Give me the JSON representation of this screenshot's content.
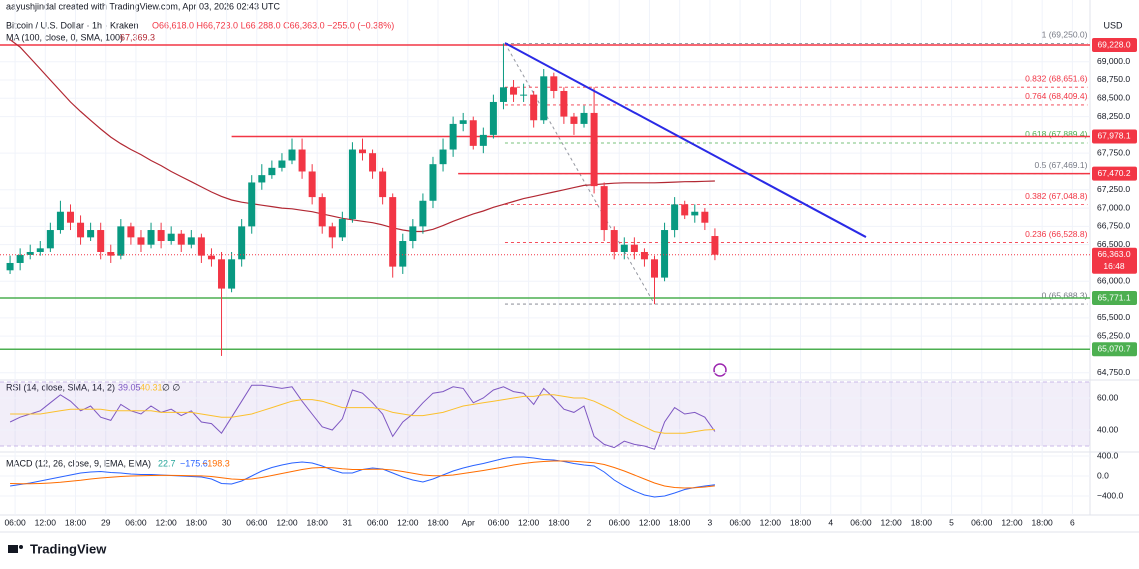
{
  "header": {
    "author": "aayushjindal created with TradingView.com, Apr 03, 2026 02:43 UTC",
    "symbol": "Bitcoin / U.S. Dollar · 1h · Kraken",
    "ohlc": "O66,618.0 H66,723.0 L66,288.0 C66,363.0 −255.0 (−0.38%)",
    "ma_label": "MA (100, close, 0, SMA, 100)",
    "ma_value": "67,369.3",
    "currency": "USD"
  },
  "footer": {
    "brand": "TradingView"
  },
  "chart_data": [
    {
      "type": "candlestick",
      "xlim": [
        -3,
        213.5
      ],
      "ylim": [
        64651,
        69843
      ],
      "grid": true,
      "xticks": [
        {
          "value": 0,
          "label": "06:00"
        },
        {
          "value": 6,
          "label": "12:00"
        },
        {
          "value": 12,
          "label": "18:00"
        },
        {
          "value": 18,
          "label": "29"
        },
        {
          "value": 24,
          "label": "06:00"
        },
        {
          "value": 30,
          "label": "12:00"
        },
        {
          "value": 36,
          "label": "18:00"
        },
        {
          "value": 42,
          "label": "30"
        },
        {
          "value": 48,
          "label": "06:00"
        },
        {
          "value": 54,
          "label": "12:00"
        },
        {
          "value": 60,
          "label": "18:00"
        },
        {
          "value": 66,
          "label": "31"
        },
        {
          "value": 72,
          "label": "06:00"
        },
        {
          "value": 78,
          "label": "12:00"
        },
        {
          "value": 84,
          "label": "18:00"
        },
        {
          "value": 90,
          "label": "Apr"
        },
        {
          "value": 96,
          "label": "06:00"
        },
        {
          "value": 102,
          "label": "12:00"
        },
        {
          "value": 108,
          "label": "18:00"
        },
        {
          "value": 114,
          "label": "2"
        },
        {
          "value": 120,
          "label": "06:00"
        },
        {
          "value": 126,
          "label": "12:00"
        },
        {
          "value": 132,
          "label": "18:00"
        },
        {
          "value": 138,
          "label": "3"
        },
        {
          "value": 144,
          "label": "06:00"
        },
        {
          "value": 150,
          "label": "12:00"
        },
        {
          "value": 156,
          "label": "18:00"
        },
        {
          "value": 162,
          "label": "4"
        },
        {
          "value": 168,
          "label": "06:00"
        },
        {
          "value": 174,
          "label": "12:00"
        },
        {
          "value": 180,
          "label": "18:00"
        },
        {
          "value": 186,
          "label": "5"
        },
        {
          "value": 192,
          "label": "06:00"
        },
        {
          "value": 198,
          "label": "12:00"
        },
        {
          "value": 204,
          "label": "18:00"
        },
        {
          "value": 210,
          "label": "6"
        }
      ],
      "yticks": [
        {
          "value": 69000,
          "label": "69,000.0"
        },
        {
          "value": 68750,
          "label": "68,750.0"
        },
        {
          "value": 68500,
          "label": "68,500.0"
        },
        {
          "value": 68250,
          "label": "68,250.0"
        },
        {
          "value": 67750,
          "label": "67,750.0"
        },
        {
          "value": 67250,
          "label": "67,250.0"
        },
        {
          "value": 67000,
          "label": "67,000.0"
        },
        {
          "value": 66750,
          "label": "66,750.0"
        },
        {
          "value": 66500,
          "label": "66,500.0"
        },
        {
          "value": 66000,
          "label": "66,000.0"
        },
        {
          "value": 65500,
          "label": "65,500.0"
        },
        {
          "value": 65250,
          "label": "65,250.0"
        },
        {
          "value": 64750,
          "label": "64,750.0"
        }
      ],
      "x": [
        -1,
        1,
        3,
        5,
        7,
        9,
        11,
        13,
        15,
        17,
        19,
        21,
        23,
        25,
        27,
        29,
        31,
        33,
        35,
        37,
        39,
        41,
        43,
        45,
        47,
        49,
        51,
        53,
        55,
        57,
        59,
        61,
        63,
        65,
        67,
        69,
        71,
        73,
        75,
        77,
        79,
        81,
        83,
        85,
        87,
        89,
        91,
        93,
        95,
        97,
        99,
        101,
        103,
        105,
        107,
        109,
        111,
        113,
        115,
        117,
        119,
        121,
        123,
        125,
        127,
        129,
        131,
        133,
        135,
        137,
        139
      ],
      "open": [
        66150,
        66250,
        66360,
        66400,
        66450,
        66700,
        66950,
        66800,
        66600,
        66700,
        66400,
        66350,
        66750,
        66600,
        66500,
        66700,
        66550,
        66650,
        66500,
        66600,
        66350,
        66300,
        65900,
        66300,
        66750,
        67350,
        67450,
        67550,
        67650,
        67800,
        67500,
        67150,
        66750,
        66600,
        66850,
        67800,
        67750,
        67500,
        67150,
        66200,
        66550,
        66750,
        67100,
        67600,
        67800,
        68150,
        68200,
        67850,
        68000,
        68450,
        68650,
        68550,
        68550,
        68200,
        68800,
        68600,
        68250,
        68150,
        68300,
        67300,
        66700,
        66400,
        66500,
        66400,
        66300,
        66050,
        66700,
        67050,
        66900,
        66950,
        66618
      ],
      "high": [
        66350,
        66450,
        66500,
        66550,
        66800,
        67100,
        67050,
        66900,
        66800,
        66800,
        66500,
        66850,
        66800,
        66700,
        66800,
        66800,
        66750,
        66700,
        66700,
        66650,
        66450,
        66400,
        66400,
        66850,
        67450,
        67600,
        67650,
        67750,
        67950,
        67950,
        67600,
        67200,
        66800,
        66950,
        67900,
        67950,
        67800,
        67550,
        67200,
        66650,
        66850,
        67200,
        67700,
        67950,
        68250,
        68300,
        68250,
        68100,
        68550,
        69250,
        68750,
        68700,
        68600,
        68900,
        68850,
        68650,
        68300,
        68400,
        68650,
        67350,
        66750,
        66600,
        66600,
        66450,
        66350,
        66800,
        67150,
        67100,
        67050,
        67000,
        66723
      ],
      "low": [
        66100,
        66150,
        66300,
        66350,
        66400,
        66650,
        66700,
        66500,
        66550,
        66300,
        66250,
        66300,
        66500,
        66400,
        66450,
        66450,
        66500,
        66400,
        66450,
        66250,
        66200,
        64980,
        65850,
        66200,
        66650,
        67250,
        67400,
        67500,
        67600,
        67400,
        67050,
        66650,
        66450,
        66550,
        66800,
        67650,
        67400,
        67050,
        66050,
        66100,
        66450,
        66650,
        67000,
        67500,
        67700,
        68050,
        67800,
        67750,
        67950,
        68350,
        68450,
        68450,
        68100,
        68150,
        68500,
        68150,
        68000,
        68100,
        67200,
        66550,
        66300,
        66300,
        66300,
        66200,
        65688,
        66000,
        66600,
        66850,
        66800,
        66700,
        66288
      ],
      "close": [
        66250,
        66360,
        66400,
        66450,
        66700,
        66950,
        66800,
        66600,
        66700,
        66400,
        66350,
        66750,
        66600,
        66500,
        66700,
        66550,
        66650,
        66500,
        66600,
        66350,
        66300,
        65900,
        66300,
        66750,
        67350,
        67450,
        67550,
        67650,
        67800,
        67500,
        67150,
        66750,
        66600,
        66850,
        67800,
        67750,
        67500,
        67150,
        66200,
        66550,
        66750,
        67100,
        67600,
        67800,
        68150,
        68200,
        67850,
        68000,
        68450,
        68650,
        68550,
        68550,
        68200,
        68800,
        68600,
        68250,
        68150,
        68300,
        67300,
        66700,
        66400,
        66500,
        66400,
        66300,
        66050,
        66700,
        67050,
        66900,
        66950,
        66800,
        66363
      ],
      "up_color": "#089981",
      "down_color": "#f23645",
      "ma": {
        "color": "#b22833",
        "values": [
          69300,
          69200,
          69050,
          68900,
          68750,
          68600,
          68450,
          68320,
          68200,
          68080,
          67970,
          67880,
          67800,
          67730,
          67650,
          67580,
          67500,
          67430,
          67360,
          67290,
          67220,
          67160,
          67110,
          67080,
          67060,
          67040,
          67020,
          67000,
          66990,
          66970,
          66950,
          66920,
          66890,
          66860,
          66840,
          66820,
          66800,
          66770,
          66730,
          66700,
          66680,
          66680,
          66710,
          66760,
          66820,
          66870,
          66920,
          66960,
          67010,
          67050,
          67090,
          67130,
          67160,
          67190,
          67220,
          67250,
          67280,
          67310,
          67320,
          67330,
          67340,
          67345,
          67345,
          67345,
          67345,
          67350,
          67355,
          67360,
          67362,
          67366,
          67369.3
        ]
      },
      "levels": [
        {
          "value": 69228.0,
          "label": "69,228.0",
          "color": "#f23645",
          "from": -3
        },
        {
          "value": 67978.1,
          "label": "67,978.1",
          "color": "#f23645",
          "from": 43
        },
        {
          "value": 67470.2,
          "label": "67,470.2",
          "color": "#f23645",
          "from": 88
        },
        {
          "value": 65771.1,
          "label": "65,771.1",
          "color": "#4caf50",
          "from": -3
        },
        {
          "value": 65070.7,
          "label": "65,070.7",
          "color": "#4caf50",
          "from": -3
        }
      ],
      "price_label": {
        "value": 66363.0,
        "label": "66,363.0",
        "countdown": "16:48",
        "color": "#f23645"
      },
      "fib": {
        "x": [
          97.3,
          127
        ],
        "to": 213,
        "levels": [
          {
            "value": 69250.0,
            "label": "1 (69,250.0)",
            "color": "#787b86"
          },
          {
            "value": 68651.6,
            "label": "0.832 (68,651.6)",
            "color": "#f23645"
          },
          {
            "value": 68409.4,
            "label": "0.764 (68,409.4)",
            "color": "#f23645"
          },
          {
            "value": 67889.4,
            "label": "0.618 (67,889.4)",
            "color": "#4caf50"
          },
          {
            "value": 67469.1,
            "label": "0.5 (67,469.1)",
            "color": "#787b86"
          },
          {
            "value": 67048.8,
            "label": "0.382 (67,048.8)",
            "color": "#f23645"
          },
          {
            "value": 66528.8,
            "label": "0.236 (66,528.8)",
            "color": "#f23645"
          },
          {
            "value": 65688.3,
            "label": "0 (65,688.3)",
            "color": "#787b86"
          }
        ]
      },
      "trendline": {
        "x": [
          97.3,
          169
        ],
        "y": [
          69255,
          66604
        ],
        "color": "#2a2ae6"
      }
    },
    {
      "type": "line",
      "title": "RSI (14, close, SMA, 14, 2)",
      "legend": [
        "39.05",
        "40.31",
        "∅ ∅"
      ],
      "ylim": [
        26.25,
        71.25
      ],
      "band": [
        30,
        70
      ],
      "yticks": [
        {
          "value": 60,
          "label": "60.00"
        },
        {
          "value": 40,
          "label": "40.00"
        }
      ],
      "series": [
        {
          "color": "#7e57c2",
          "values": [
            45,
            48,
            50,
            52,
            57,
            62,
            58,
            52,
            55,
            48,
            46,
            56,
            52,
            50,
            55,
            51,
            53,
            49,
            52,
            45,
            44,
            38,
            48,
            58,
            68,
            68,
            67,
            66,
            67,
            58,
            50,
            42,
            40,
            47,
            65,
            63,
            57,
            50,
            36,
            45,
            50,
            57,
            63,
            64,
            67,
            66,
            57,
            60,
            65,
            67,
            64,
            63,
            56,
            66,
            60,
            53,
            51,
            55,
            36,
            31,
            29,
            33,
            31,
            30,
            28,
            45,
            54,
            50,
            51,
            48,
            39.05
          ]
        },
        {
          "color": "#fbc02d",
          "values": [
            50,
            50,
            50,
            50,
            51,
            52,
            53,
            53,
            53,
            53,
            52,
            52,
            52,
            52,
            52,
            51,
            51,
            51,
            51,
            50,
            49,
            48,
            48,
            49,
            50,
            52,
            54,
            56,
            58,
            59,
            59,
            58,
            56,
            54,
            54,
            54,
            54,
            53,
            51,
            50,
            49,
            49,
            50,
            51,
            53,
            55,
            56,
            57,
            58,
            59,
            60,
            61,
            61,
            62,
            62,
            61,
            60,
            60,
            58,
            55,
            52,
            48,
            45,
            42,
            39,
            38,
            38,
            38,
            39,
            40,
            40.31
          ]
        }
      ]
    },
    {
      "type": "line",
      "title": "MACD (12, 26, close, 9, EMA, EMA)",
      "legend": [
        "22.7",
        "−175.6",
        "−198.3"
      ],
      "ylim": [
        -780,
        480
      ],
      "yticks": [
        {
          "value": 400,
          "label": "400.0"
        },
        {
          "value": 0,
          "label": "0.0"
        },
        {
          "value": -400,
          "label": "−400.0"
        }
      ],
      "series": [
        {
          "color": "#2962ff",
          "values": [
            -200,
            -170,
            -140,
            -100,
            -60,
            -20,
            20,
            60,
            80,
            90,
            70,
            60,
            40,
            30,
            30,
            20,
            10,
            0,
            -10,
            -20,
            -60,
            -150,
            -160,
            -100,
            0,
            100,
            170,
            220,
            260,
            280,
            260,
            200,
            120,
            60,
            60,
            130,
            160,
            140,
            60,
            -20,
            -80,
            -120,
            -60,
            20,
            100,
            160,
            210,
            250,
            300,
            350,
            380,
            380,
            360,
            330,
            320,
            290,
            250,
            220,
            200,
            80,
            -80,
            -200,
            -300,
            -380,
            -420,
            -400,
            -340,
            -270,
            -230,
            -200,
            -175.6
          ]
        },
        {
          "color": "#ff6d00",
          "values": [
            -150,
            -155,
            -155,
            -150,
            -140,
            -125,
            -105,
            -85,
            -60,
            -40,
            -25,
            -10,
            0,
            5,
            10,
            12,
            12,
            10,
            6,
            2,
            -10,
            -35,
            -60,
            -70,
            -60,
            -30,
            10,
            50,
            90,
            130,
            160,
            170,
            165,
            145,
            130,
            130,
            135,
            135,
            120,
            90,
            55,
            20,
            5,
            5,
            20,
            50,
            80,
            110,
            145,
            180,
            220,
            250,
            275,
            290,
            300,
            300,
            295,
            280,
            265,
            230,
            170,
            100,
            20,
            -60,
            -140,
            -200,
            -230,
            -240,
            -235,
            -220,
            -198.3
          ]
        }
      ]
    }
  ]
}
